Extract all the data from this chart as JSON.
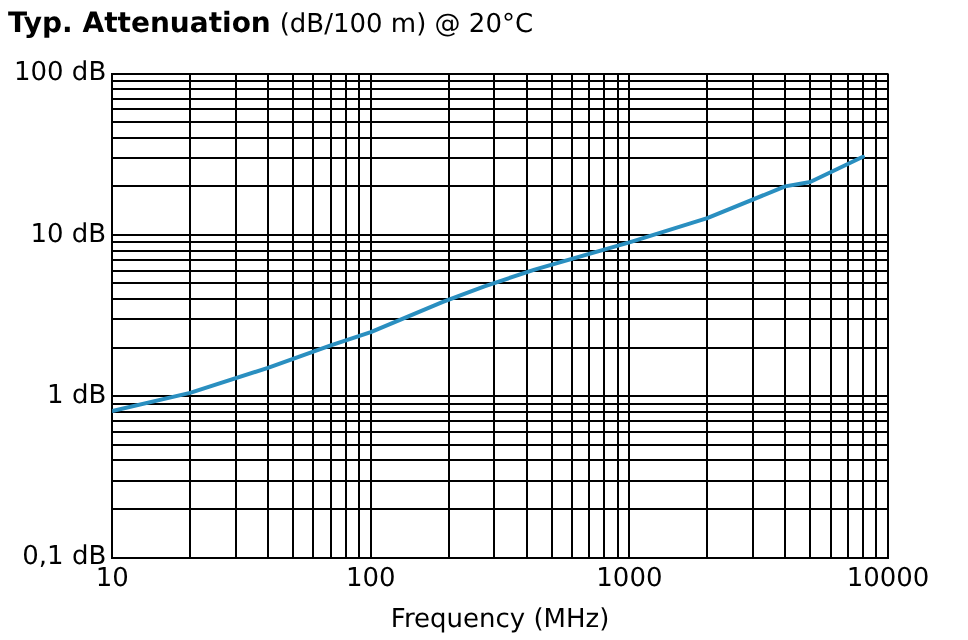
{
  "chart_data": {
    "type": "line",
    "title": "Typ. Attenuation",
    "subtitle": "(dB/100 m) @ 20°C",
    "xlabel": "Frequency (MHz)",
    "log": "xy",
    "grid": true,
    "legend": false,
    "marker": "none",
    "line_style": "solid",
    "xlim": [
      10,
      10000
    ],
    "ylim": [
      0.1,
      100
    ],
    "xticks": [
      10,
      {
        "value": 20,
        "label": null
      },
      {
        "value": 30,
        "label": null
      },
      {
        "value": 40,
        "label": null
      },
      {
        "value": 50,
        "label": null
      },
      {
        "value": 60,
        "label": null
      },
      {
        "value": 70,
        "label": null
      },
      {
        "value": 80,
        "label": null
      },
      {
        "value": 90,
        "label": null
      },
      100,
      {
        "value": 200,
        "label": null
      },
      {
        "value": 300,
        "label": null
      },
      {
        "value": 400,
        "label": null
      },
      {
        "value": 500,
        "label": null
      },
      {
        "value": 600,
        "label": null
      },
      {
        "value": 700,
        "label": null
      },
      {
        "value": 800,
        "label": null
      },
      {
        "value": 900,
        "label": null
      },
      1000,
      {
        "value": 2000,
        "label": null
      },
      {
        "value": 3000,
        "label": null
      },
      {
        "value": 4000,
        "label": null
      },
      {
        "value": 5000,
        "label": null
      },
      {
        "value": 6000,
        "label": null
      },
      {
        "value": 7000,
        "label": null
      },
      {
        "value": 8000,
        "label": null
      },
      {
        "value": 9000,
        "label": null
      },
      10000
    ],
    "yticks": [
      {
        "value": 0.1,
        "label": "0,1 dB"
      },
      {
        "value": 0.2,
        "label": null
      },
      {
        "value": 0.3,
        "label": null
      },
      {
        "value": 0.4,
        "label": null
      },
      {
        "value": 0.5,
        "label": null
      },
      {
        "value": 0.6,
        "label": null
      },
      {
        "value": 0.7,
        "label": null
      },
      {
        "value": 0.8,
        "label": null
      },
      {
        "value": 0.9,
        "label": null
      },
      {
        "value": 1,
        "label": "1 dB"
      },
      {
        "value": 2,
        "label": null
      },
      {
        "value": 3,
        "label": null
      },
      {
        "value": 4,
        "label": null
      },
      {
        "value": 5,
        "label": null
      },
      {
        "value": 6,
        "label": null
      },
      {
        "value": 7,
        "label": null
      },
      {
        "value": 8,
        "label": null
      },
      {
        "value": 9,
        "label": null
      },
      {
        "value": 10,
        "label": "10 dB"
      },
      {
        "value": 20,
        "label": null
      },
      {
        "value": 30,
        "label": null
      },
      {
        "value": 40,
        "label": null
      },
      {
        "value": 50,
        "label": null
      },
      {
        "value": 60,
        "label": null
      },
      {
        "value": 70,
        "label": null
      },
      {
        "value": 80,
        "label": null
      },
      {
        "value": 90,
        "label": null
      },
      {
        "value": 100,
        "label": "100 dB"
      }
    ],
    "series": [
      {
        "color": "#2a8fc0",
        "x": [
          10,
          20,
          40,
          70,
          100,
          190,
          275,
          430,
          1000,
          2000,
          4000,
          5000,
          8000
        ],
        "values": [
          0.81,
          1.05,
          1.5,
          2.07,
          2.5,
          3.85,
          4.8,
          6.1,
          9,
          12.7,
          20,
          21.3,
          30.5
        ]
      }
    ]
  }
}
